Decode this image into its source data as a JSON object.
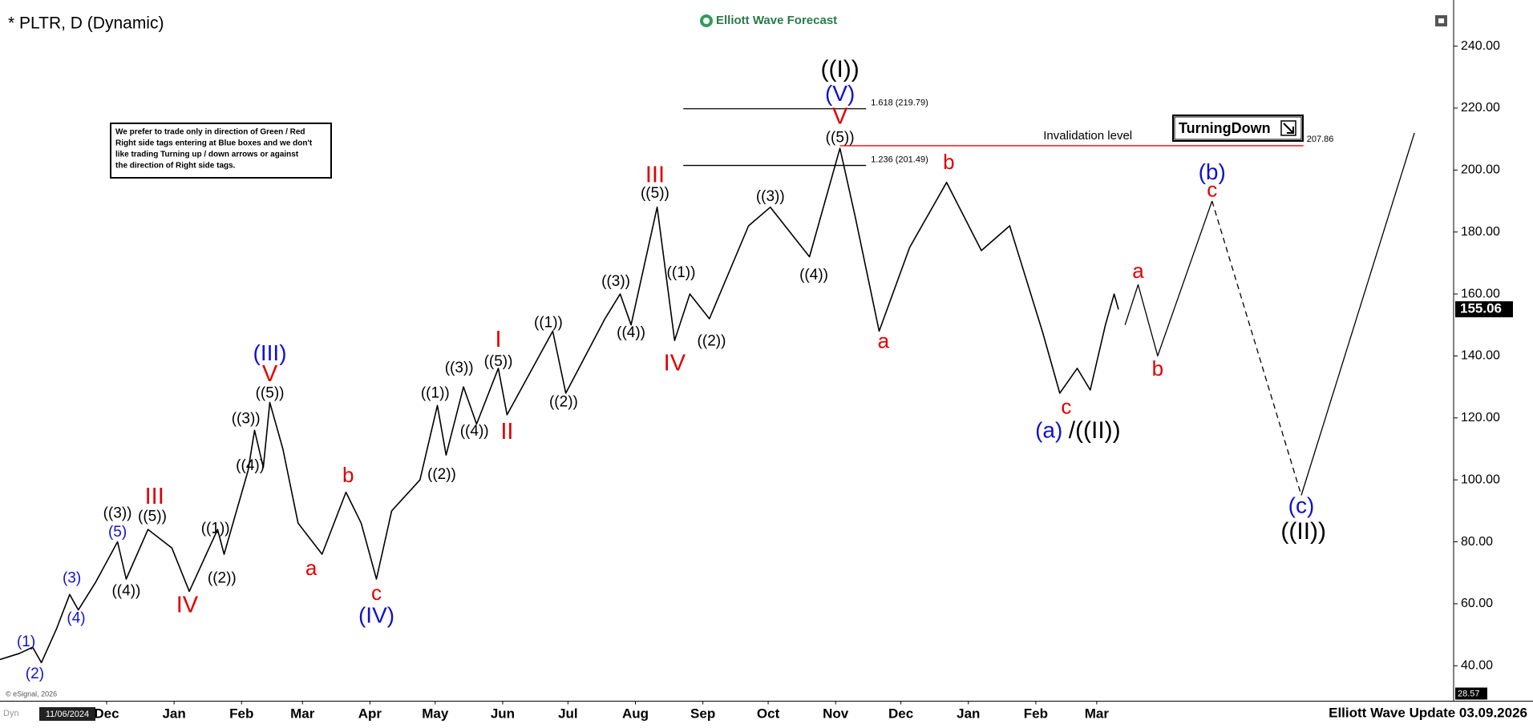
{
  "chart_data": {
    "type": "line",
    "title": "* PLTR, D (Dynamic)",
    "brand": "Elliott Wave Forecast",
    "footer": "Elliott Wave Update 03.09.2026",
    "copyright": "© eSignal, 2026",
    "cursor_date": "11/06/2024",
    "interval_tag": "Dyn",
    "disclaimer": [
      "We prefer to trade only in direction of Green / Red",
      "Right side tags entering at Blue boxes and we don't",
      "like trading Turning up / down arrows or against",
      "the direction of Right side tags."
    ],
    "signal": "TurningDown",
    "last_price": 155.06,
    "ylim": [
      28.57,
      252.3
    ],
    "yticks": [
      {
        "value": 40,
        "label": "40.00"
      },
      {
        "value": 60,
        "label": "60.00"
      },
      {
        "value": 80,
        "label": "80.00"
      },
      {
        "value": 100,
        "label": "100.00"
      },
      {
        "value": 120,
        "label": "120.00"
      },
      {
        "value": 140,
        "label": "140.00"
      },
      {
        "value": 160,
        "label": "160.00"
      },
      {
        "value": 180,
        "label": "180.00"
      },
      {
        "value": 200,
        "label": "200.00"
      },
      {
        "value": 220,
        "label": "220.00"
      },
      {
        "value": 240,
        "label": "240.00"
      }
    ],
    "xlim": [
      "2024-10-13",
      "2026-08-12"
    ],
    "xticks": [
      {
        "value": "2024-12-01",
        "label": "Dec"
      },
      {
        "value": "2025-01-01",
        "label": "Jan"
      },
      {
        "value": "2025-02-01",
        "label": "Feb"
      },
      {
        "value": "2025-03-01",
        "label": "Mar"
      },
      {
        "value": "2025-04-01",
        "label": "Apr"
      },
      {
        "value": "2025-05-01",
        "label": "May"
      },
      {
        "value": "2025-06-01",
        "label": "Jun"
      },
      {
        "value": "2025-07-01",
        "label": "Jul"
      },
      {
        "value": "2025-08-01",
        "label": "Aug"
      },
      {
        "value": "2025-09-01",
        "label": "Sep"
      },
      {
        "value": "2025-10-01",
        "label": "Oct"
      },
      {
        "value": "2025-11-01",
        "label": "Nov"
      },
      {
        "value": "2025-12-01",
        "label": "Dec"
      },
      {
        "value": "2026-01-01",
        "label": "Jan"
      },
      {
        "value": "2026-02-01",
        "label": "Feb"
      },
      {
        "value": "2026-03-01",
        "label": "Mar"
      }
    ],
    "series": [
      {
        "color": "#000000",
        "x": [
          "2024-10-13",
          "2024-10-22",
          "2024-10-28",
          "2024-11-01",
          "2024-11-08",
          "2024-11-14",
          "2024-11-18",
          "2024-11-26",
          "2024-12-06",
          "2024-12-10",
          "2024-12-20",
          "2024-12-31",
          "2025-01-08",
          "2025-01-21",
          "2025-01-24",
          "2025-02-04",
          "2025-02-07",
          "2025-02-11",
          "2025-02-14",
          "2025-02-20",
          "2025-02-27",
          "2025-03-10",
          "2025-03-21",
          "2025-03-28",
          "2025-04-04",
          "2025-04-11",
          "2025-04-24",
          "2025-05-02",
          "2025-05-06",
          "2025-05-14",
          "2025-05-20",
          "2025-05-30",
          "2025-06-03",
          "2025-06-24",
          "2025-06-30",
          "2025-07-18",
          "2025-07-25",
          "2025-07-30",
          "2025-08-11",
          "2025-08-19",
          "2025-08-26",
          "2025-09-04",
          "2025-09-22",
          "2025-10-02",
          "2025-10-20",
          "2025-11-03",
          "2025-11-10",
          "2025-11-21",
          "2025-12-05",
          "2025-12-22",
          "2026-01-07",
          "2026-01-20",
          "2026-02-04",
          "2026-02-12",
          "2026-02-20",
          "2026-02-26",
          "2026-03-05",
          "2026-03-09",
          "2026-03-11"
        ],
        "values": [
          42,
          44,
          46,
          41,
          52,
          63,
          58,
          67,
          80,
          68,
          84,
          78,
          64,
          84,
          76,
          103,
          116,
          104,
          125,
          110,
          86,
          76,
          96,
          86,
          68,
          90,
          100,
          124,
          108,
          130,
          118,
          136,
          121,
          148,
          128,
          152,
          160,
          150,
          188,
          145,
          160,
          152,
          182,
          188,
          172,
          207,
          185,
          148,
          175,
          196,
          174,
          182,
          148,
          128,
          136,
          129,
          150,
          160,
          155
        ]
      },
      {
        "color": "#000000",
        "x": [
          "2026-03-14",
          "2026-03-20",
          "2026-03-29",
          "2026-04-23"
        ],
        "values": [
          150,
          163,
          140,
          190
        ]
      },
      {
        "color": "#000000",
        "dash": true,
        "x": [
          "2026-04-23",
          "2026-06-03"
        ],
        "values": [
          190,
          95
        ]
      },
      {
        "color": "#000000",
        "x": [
          "2026-06-03",
          "2026-07-25"
        ],
        "values": [
          95,
          212
        ]
      }
    ],
    "levels": [
      {
        "value": 219.79,
        "label": "1.618 (219.79)",
        "x": [
          "2025-08-23",
          "2025-11-15"
        ],
        "color": "#000000",
        "label_position": "right"
      },
      {
        "value": 201.49,
        "label": "1.236 (201.49)",
        "x": [
          "2025-08-23",
          "2025-11-15"
        ],
        "color": "#000000",
        "label_position": "right"
      },
      {
        "value": 207.86,
        "label": "Invalidation level",
        "x": [
          "2025-11-03",
          "2026-06-04"
        ],
        "color": "#ff0000",
        "label_position": "above"
      }
    ],
    "annotations": [
      {
        "text": "(1)",
        "x": "2024-10-25",
        "y": 47.6,
        "color": "#1010d0"
      },
      {
        "text": "(2)",
        "x": "2024-10-29",
        "y": 37.2,
        "color": "#1010d0"
      },
      {
        "text": "(3)",
        "x": "2024-11-15",
        "y": 68.1,
        "color": "#1010d0"
      },
      {
        "text": "(4)",
        "x": "2024-11-17",
        "y": 55.2,
        "color": "#1010d0"
      },
      {
        "text": "(5)",
        "x": "2024-12-06",
        "y": 83,
        "color": "#1010d0"
      },
      {
        "text": "((3))",
        "x": "2024-12-06",
        "y": 89,
        "color": "#000000"
      },
      {
        "text": "((5))",
        "x": "2024-12-22",
        "y": 88,
        "color": "#000000"
      },
      {
        "text": "III",
        "x": "2024-12-23",
        "y": 94.3,
        "color": "#e00000"
      },
      {
        "text": "((4))",
        "x": "2024-12-10",
        "y": 64,
        "color": "#000000"
      },
      {
        "text": "IV",
        "x": "2025-01-07",
        "y": 59.3,
        "color": "#e00000"
      },
      {
        "text": "((1))",
        "x": "2025-01-20",
        "y": 84.2,
        "color": "#000000"
      },
      {
        "text": "((2))",
        "x": "2025-01-23",
        "y": 68.1,
        "color": "#000000"
      },
      {
        "text": "((3))",
        "x": "2025-02-03",
        "y": 119.6,
        "color": "#000000"
      },
      {
        "text": "((4))",
        "x": "2025-02-05",
        "y": 104.5,
        "color": "#000000"
      },
      {
        "text": "((5))",
        "x": "2025-02-14",
        "y": 127.8,
        "color": "#000000"
      },
      {
        "text": "V",
        "x": "2025-02-14",
        "y": 133.8,
        "color": "#e00000"
      },
      {
        "text": "(III)",
        "x": "2025-02-14",
        "y": 140.5,
        "color": "#1010d0"
      },
      {
        "text": "a",
        "x": "2025-03-05",
        "y": 71,
        "color": "#e00000"
      },
      {
        "text": "b",
        "x": "2025-03-22",
        "y": 101,
        "color": "#e00000"
      },
      {
        "text": "c",
        "x": "2025-04-04",
        "y": 63.1,
        "color": "#e00000"
      },
      {
        "text": "(IV)",
        "x": "2025-04-04",
        "y": 55.8,
        "color": "#1010d0"
      },
      {
        "text": "((1))",
        "x": "2025-05-01",
        "y": 127.8,
        "color": "#000000"
      },
      {
        "text": "((2))",
        "x": "2025-05-04",
        "y": 101.6,
        "color": "#000000"
      },
      {
        "text": "((3))",
        "x": "2025-05-12",
        "y": 136,
        "color": "#000000"
      },
      {
        "text": "((4))",
        "x": "2025-05-19",
        "y": 115.5,
        "color": "#000000"
      },
      {
        "text": "((5))",
        "x": "2025-05-30",
        "y": 138,
        "color": "#000000"
      },
      {
        "text": "I",
        "x": "2025-05-30",
        "y": 144.9,
        "color": "#e00000"
      },
      {
        "text": "II",
        "x": "2025-06-03",
        "y": 115.2,
        "color": "#e00000"
      },
      {
        "text": "((1))",
        "x": "2025-06-22",
        "y": 150.6,
        "color": "#000000"
      },
      {
        "text": "((2))",
        "x": "2025-06-29",
        "y": 125,
        "color": "#000000"
      },
      {
        "text": "((3))",
        "x": "2025-07-23",
        "y": 163.9,
        "color": "#000000"
      },
      {
        "text": "((4))",
        "x": "2025-07-30",
        "y": 147.4,
        "color": "#000000"
      },
      {
        "text": "((5))",
        "x": "2025-08-10",
        "y": 192.3,
        "color": "#000000"
      },
      {
        "text": "III",
        "x": "2025-08-10",
        "y": 198,
        "color": "#e00000"
      },
      {
        "text": "((1))",
        "x": "2025-08-22",
        "y": 166.7,
        "color": "#000000"
      },
      {
        "text": "IV",
        "x": "2025-08-19",
        "y": 137.3,
        "color": "#e00000"
      },
      {
        "text": "((2))",
        "x": "2025-09-05",
        "y": 144.6,
        "color": "#000000"
      },
      {
        "text": "((3))",
        "x": "2025-10-02",
        "y": 191.3,
        "color": "#000000"
      },
      {
        "text": "((4))",
        "x": "2025-10-22",
        "y": 166,
        "color": "#000000"
      },
      {
        "text": "((5))",
        "x": "2025-11-03",
        "y": 210.3,
        "color": "#000000"
      },
      {
        "text": "V",
        "x": "2025-11-03",
        "y": 216.9,
        "color": "#e00000"
      },
      {
        "text": "(V)",
        "x": "2025-11-03",
        "y": 224.2,
        "color": "#1010d0"
      },
      {
        "text": "((I))",
        "x": "2025-11-03",
        "y": 232.1,
        "color": "#000000"
      },
      {
        "text": "a",
        "x": "2025-11-23",
        "y": 144.3,
        "color": "#e00000"
      },
      {
        "text": "b",
        "x": "2025-12-23",
        "y": 202.1,
        "color": "#e00000"
      },
      {
        "text": "c",
        "x": "2026-02-15",
        "y": 123.1,
        "color": "#e00000"
      },
      {
        "text": "(a)",
        "x": "2026-02-07",
        "y": 115.5,
        "color": "#1010d0"
      },
      {
        "text": "/((II))",
        "x": "2026-02-28",
        "y": 115.5,
        "color": "#000000"
      },
      {
        "text": "a",
        "x": "2026-03-20",
        "y": 167,
        "color": "#e00000"
      },
      {
        "text": "b",
        "x": "2026-03-29",
        "y": 135.4,
        "color": "#e00000"
      },
      {
        "text": "c",
        "x": "2026-04-23",
        "y": 193.2,
        "color": "#e00000"
      },
      {
        "text": "(b)",
        "x": "2026-04-23",
        "y": 198.9,
        "color": "#1010d0"
      },
      {
        "text": "(c)",
        "x": "2026-06-03",
        "y": 91.2,
        "color": "#1010d0"
      },
      {
        "text": "((II))",
        "x": "2026-06-04",
        "y": 83,
        "color": "#000000"
      }
    ]
  }
}
